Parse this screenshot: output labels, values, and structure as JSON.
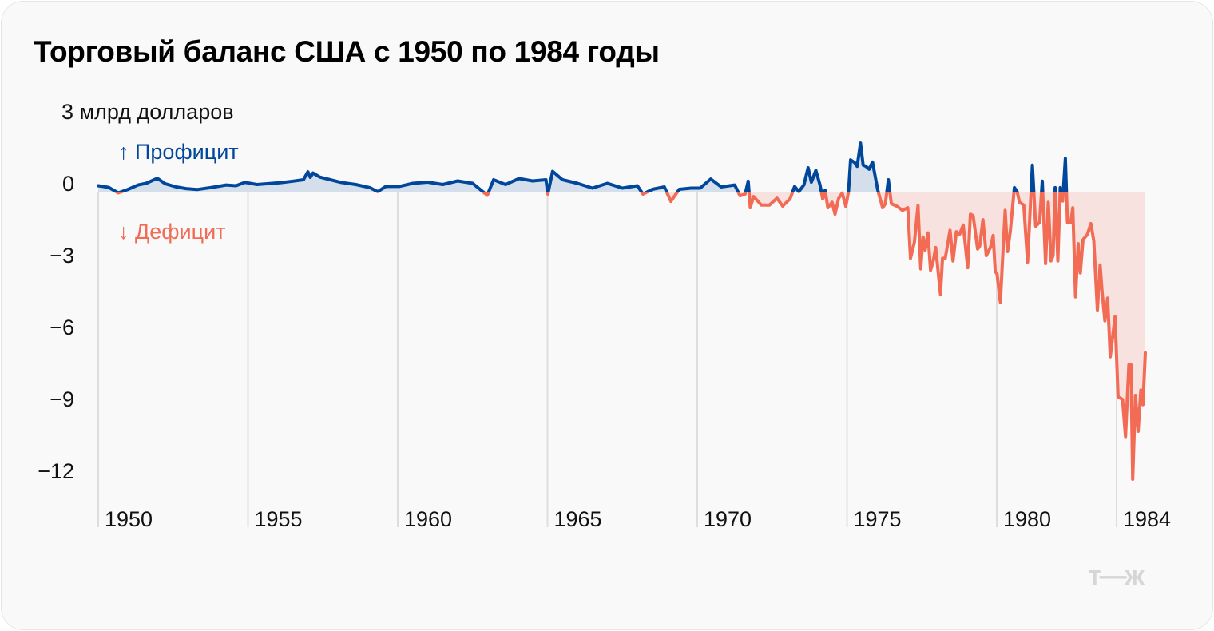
{
  "title": "Торговый баланс США с 1950 по 1984 годы",
  "logo": "т—ж",
  "chart_data": {
    "type": "line",
    "title": "Торговый баланс США с 1950 по 1984 годы",
    "ylabel": "млрд долларов",
    "y_top_label": "3 млрд долларов",
    "y_ticks": [
      {
        "value": 0,
        "label": "0"
      },
      {
        "value": -3,
        "label": "−3"
      },
      {
        "value": -6,
        "label": "−6"
      },
      {
        "value": -9,
        "label": "−9"
      },
      {
        "value": -12,
        "label": "−12"
      }
    ],
    "x_ticks": [
      {
        "value": 1950,
        "label": "1950"
      },
      {
        "value": 1955,
        "label": "1955"
      },
      {
        "value": 1960,
        "label": "1960"
      },
      {
        "value": 1965,
        "label": "1965"
      },
      {
        "value": 1970,
        "label": "1970"
      },
      {
        "value": 1975,
        "label": "1975"
      },
      {
        "value": 1980,
        "label": "1980"
      },
      {
        "value": 1984,
        "label": "1984"
      }
    ],
    "xlim": [
      1950,
      1985
    ],
    "ylim": [
      -12.5,
      3
    ],
    "grid": "vertical",
    "legend": {
      "surplus": "↑ Профицит",
      "deficit": "↓ Дефицит"
    },
    "colors": {
      "surplus": "#00479b",
      "deficit": "#f26b55",
      "surplus_fill": "#d4dfeb",
      "deficit_fill": "#f8e2df",
      "grid": "#dedede"
    },
    "points": [
      [
        1950.0,
        0.25
      ],
      [
        1950.35,
        0.18
      ],
      [
        1950.67,
        -0.05
      ],
      [
        1951.0,
        0.1
      ],
      [
        1951.33,
        0.28
      ],
      [
        1951.6,
        0.35
      ],
      [
        1951.97,
        0.56
      ],
      [
        1952.24,
        0.33
      ],
      [
        1952.6,
        0.2
      ],
      [
        1952.93,
        0.13
      ],
      [
        1953.3,
        0.09
      ],
      [
        1953.8,
        0.18
      ],
      [
        1954.27,
        0.28
      ],
      [
        1954.6,
        0.25
      ],
      [
        1954.9,
        0.39
      ],
      [
        1955.3,
        0.3
      ],
      [
        1955.6,
        0.33
      ],
      [
        1956.1,
        0.38
      ],
      [
        1956.5,
        0.44
      ],
      [
        1956.85,
        0.5
      ],
      [
        1957.0,
        0.83
      ],
      [
        1957.08,
        0.6
      ],
      [
        1957.17,
        0.78
      ],
      [
        1957.4,
        0.61
      ],
      [
        1957.75,
        0.5
      ],
      [
        1958.1,
        0.39
      ],
      [
        1958.6,
        0.3
      ],
      [
        1959.07,
        0.17
      ],
      [
        1959.33,
        0.0
      ],
      [
        1959.6,
        0.22
      ],
      [
        1960.05,
        0.22
      ],
      [
        1960.5,
        0.35
      ],
      [
        1961.0,
        0.4
      ],
      [
        1961.5,
        0.3
      ],
      [
        1962.0,
        0.45
      ],
      [
        1962.5,
        0.35
      ],
      [
        1962.99,
        -0.15
      ],
      [
        1963.2,
        0.5
      ],
      [
        1963.6,
        0.3
      ],
      [
        1964.05,
        0.55
      ],
      [
        1964.5,
        0.45
      ],
      [
        1964.95,
        0.5
      ],
      [
        1965.01,
        -0.1
      ],
      [
        1965.17,
        0.85
      ],
      [
        1965.5,
        0.5
      ],
      [
        1966.0,
        0.35
      ],
      [
        1966.5,
        0.15
      ],
      [
        1967.0,
        0.35
      ],
      [
        1967.5,
        0.15
      ],
      [
        1968.0,
        0.25
      ],
      [
        1968.19,
        -0.1
      ],
      [
        1968.5,
        0.1
      ],
      [
        1968.9,
        0.2
      ],
      [
        1969.12,
        -0.4
      ],
      [
        1969.4,
        0.1
      ],
      [
        1969.8,
        0.15
      ],
      [
        1970.1,
        0.15
      ],
      [
        1970.45,
        0.53
      ],
      [
        1970.8,
        0.2
      ],
      [
        1971.25,
        0.28
      ],
      [
        1971.43,
        -0.17
      ],
      [
        1971.6,
        -0.1
      ],
      [
        1971.7,
        0.44
      ],
      [
        1971.77,
        -0.67
      ],
      [
        1971.88,
        -0.2
      ],
      [
        1972.14,
        -0.56
      ],
      [
        1972.41,
        -0.56
      ],
      [
        1972.66,
        -0.27
      ],
      [
        1972.85,
        -0.6
      ],
      [
        1973.1,
        -0.3
      ],
      [
        1973.25,
        0.22
      ],
      [
        1973.39,
        0.0
      ],
      [
        1973.56,
        0.28
      ],
      [
        1973.7,
        1.0
      ],
      [
        1973.81,
        0.4
      ],
      [
        1973.96,
        0.89
      ],
      [
        1974.1,
        0.28
      ],
      [
        1974.19,
        -0.3
      ],
      [
        1974.27,
        0.06
      ],
      [
        1974.36,
        -0.67
      ],
      [
        1974.5,
        -0.44
      ],
      [
        1974.6,
        -0.94
      ],
      [
        1974.72,
        -0.28
      ],
      [
        1974.84,
        -0.06
      ],
      [
        1974.96,
        -0.61
      ],
      [
        1975.05,
        0.0
      ],
      [
        1975.12,
        1.33
      ],
      [
        1975.25,
        1.22
      ],
      [
        1975.34,
        1.06
      ],
      [
        1975.45,
        2.03
      ],
      [
        1975.54,
        1.11
      ],
      [
        1975.63,
        1.06
      ],
      [
        1975.74,
        0.94
      ],
      [
        1975.85,
        1.24
      ],
      [
        1976.03,
        0.06
      ],
      [
        1976.19,
        -0.67
      ],
      [
        1976.28,
        -0.5
      ],
      [
        1976.38,
        0.5
      ],
      [
        1976.48,
        -0.5
      ],
      [
        1976.67,
        -0.61
      ],
      [
        1976.85,
        -0.78
      ],
      [
        1977.03,
        -0.67
      ],
      [
        1977.12,
        -2.78
      ],
      [
        1977.25,
        -2.11
      ],
      [
        1977.37,
        -0.58
      ],
      [
        1977.46,
        -3.22
      ],
      [
        1977.54,
        -1.89
      ],
      [
        1977.61,
        -2.44
      ],
      [
        1977.7,
        -1.72
      ],
      [
        1977.79,
        -3.28
      ],
      [
        1977.88,
        -2.89
      ],
      [
        1977.96,
        -2.33
      ],
      [
        1978.12,
        -4.28
      ],
      [
        1978.19,
        -2.78
      ],
      [
        1978.28,
        -2.78
      ],
      [
        1978.44,
        -1.61
      ],
      [
        1978.54,
        -2.89
      ],
      [
        1978.65,
        -1.67
      ],
      [
        1978.76,
        -1.78
      ],
      [
        1978.88,
        -1.39
      ],
      [
        1979.03,
        -3.17
      ],
      [
        1979.12,
        -0.94
      ],
      [
        1979.21,
        -1.0
      ],
      [
        1979.36,
        -2.39
      ],
      [
        1979.43,
        -2.28
      ],
      [
        1979.54,
        -1.17
      ],
      [
        1979.65,
        -2.67
      ],
      [
        1979.79,
        -2.33
      ],
      [
        1979.88,
        -1.83
      ],
      [
        1979.95,
        -3.33
      ],
      [
        1980.01,
        -3.44
      ],
      [
        1980.12,
        -4.61
      ],
      [
        1980.28,
        -0.78
      ],
      [
        1980.36,
        -2.5
      ],
      [
        1980.45,
        -1.67
      ],
      [
        1980.59,
        0.17
      ],
      [
        1980.68,
        0.0
      ],
      [
        1980.76,
        -0.44
      ],
      [
        1980.9,
        -0.56
      ],
      [
        1981.03,
        -2.94
      ],
      [
        1981.19,
        1.11
      ],
      [
        1981.3,
        -1.44
      ],
      [
        1981.43,
        -1.28
      ],
      [
        1981.52,
        0.44
      ],
      [
        1981.63,
        -3.0
      ],
      [
        1981.72,
        -0.44
      ],
      [
        1981.81,
        -2.89
      ],
      [
        1981.88,
        -2.67
      ],
      [
        1981.95,
        0.17
      ],
      [
        1982.04,
        -2.89
      ],
      [
        1982.12,
        0.17
      ],
      [
        1982.2,
        -0.39
      ],
      [
        1982.29,
        1.39
      ],
      [
        1982.36,
        -1.28
      ],
      [
        1982.47,
        -1.28
      ],
      [
        1982.54,
        -0.67
      ],
      [
        1982.63,
        -4.39
      ],
      [
        1982.72,
        -2.17
      ],
      [
        1982.79,
        -3.39
      ],
      [
        1982.88,
        -2.0
      ],
      [
        1983.03,
        -1.78
      ],
      [
        1983.14,
        -1.33
      ],
      [
        1983.24,
        -2.06
      ],
      [
        1983.36,
        -4.94
      ],
      [
        1983.45,
        -3.06
      ],
      [
        1983.52,
        -4.22
      ],
      [
        1983.61,
        -5.39
      ],
      [
        1983.7,
        -4.44
      ],
      [
        1983.79,
        -6.89
      ],
      [
        1983.95,
        -5.22
      ],
      [
        1984.05,
        -8.56
      ],
      [
        1984.2,
        -8.67
      ],
      [
        1984.3,
        -10.22
      ],
      [
        1984.41,
        -7.22
      ],
      [
        1984.48,
        -7.22
      ],
      [
        1984.54,
        -12.0
      ],
      [
        1984.63,
        -8.5
      ],
      [
        1984.72,
        -10.0
      ],
      [
        1984.81,
        -8.28
      ],
      [
        1984.88,
        -8.89
      ],
      [
        1984.96,
        -6.72
      ]
    ]
  }
}
